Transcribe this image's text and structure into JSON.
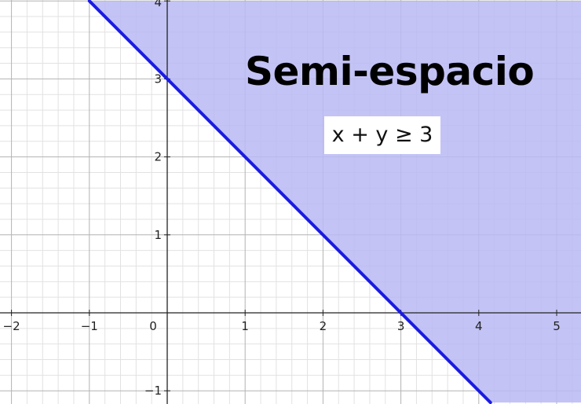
{
  "chart_data": {
    "type": "line",
    "title": "Semi-espacio",
    "inequality": "x + y ≥ 3",
    "xlim": [
      -2.15,
      5.3
    ],
    "ylim": [
      -1.15,
      4.0
    ],
    "grid": true,
    "x_ticks": [
      -2,
      -1,
      0,
      1,
      2,
      3,
      4,
      5
    ],
    "y_ticks": [
      -1,
      1,
      2,
      3,
      4
    ],
    "x_tick_labels": [
      "−2",
      "−1",
      "0",
      "1",
      "2",
      "3",
      "4",
      "5"
    ],
    "y_tick_labels": [
      "−1",
      "1",
      "2",
      "3",
      "4"
    ],
    "series": [
      {
        "points": [
          [
            -1,
            4
          ],
          [
            4.15,
            -1.15
          ]
        ]
      }
    ],
    "shaded_region": "x + y ≥ 3",
    "colors": {
      "line": "#1a1ae6",
      "fill": "#b8b8f5",
      "grid_major": "#b3b3b3",
      "grid_minor": "#e2e2e2",
      "axis": "#222222"
    }
  }
}
